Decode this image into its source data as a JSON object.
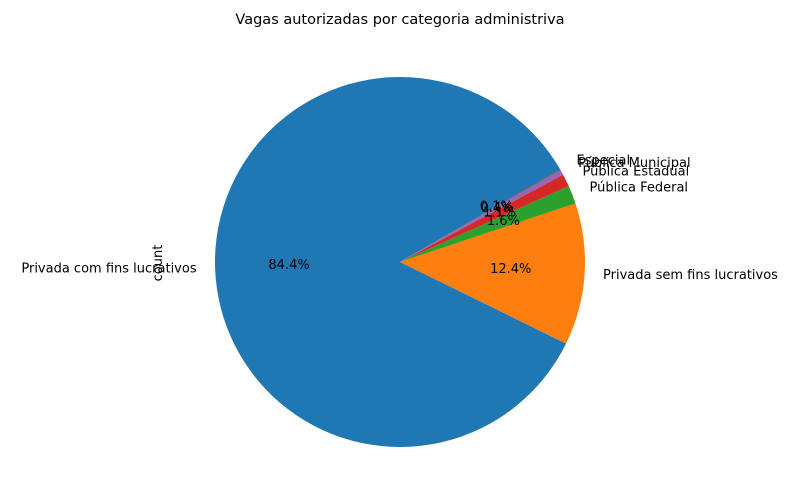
{
  "chart_data": {
    "type": "pie",
    "title": "Vagas autorizadas por categoria administriva",
    "ylabel": "count",
    "categories": [
      "Privada com fins lucrativos",
      "Privada sem fins lucrativos",
      "Pública Federal",
      "Pública Estadual",
      "Pública Municipal",
      "Especial"
    ],
    "values": [
      84.4,
      12.4,
      1.6,
      1.1,
      0.4,
      0.1
    ],
    "percent_labels": [
      "84.4%",
      "12.4%",
      "1.6%",
      "1.1%",
      "0.4%",
      "0.1%"
    ],
    "colors": [
      "#1f77b4",
      "#ff7f0e",
      "#2ca02c",
      "#d62728",
      "#9467bd",
      "#8c564b"
    ],
    "start_angle_deg": 30,
    "direction": "counterclockwise",
    "legend": "none"
  }
}
